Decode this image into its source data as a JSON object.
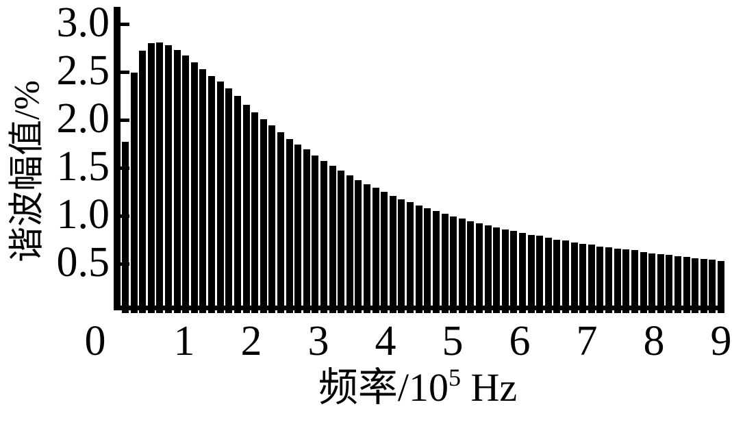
{
  "figure": {
    "background_color": "#ffffff",
    "bar_color": "#000000",
    "axis_color": "#000000"
  },
  "axis_titles": {
    "y_label": "谐波幅值/%",
    "x_label_full": "频率/10^5 Hz",
    "x_label_before_sup": "频率/10",
    "x_label_sup": "5",
    "x_label_after_sup": " Hz"
  },
  "chart_data": {
    "type": "bar",
    "title": "",
    "xlabel": "频率/10⁵ Hz",
    "ylabel": "谐波幅值/%",
    "legend": "none",
    "grid": "off",
    "bar_color": "#000000",
    "x_axis": {
      "min": 0,
      "max": 9,
      "tick_labels": [
        "0",
        "1",
        "2",
        "3",
        "4",
        "5",
        "6",
        "7",
        "8",
        "9"
      ],
      "unit": "10^5 Hz"
    },
    "y_axis": {
      "min": 0,
      "max": 3.16,
      "tick_labels": [
        "3.0",
        "2.5",
        "2.0",
        "1.5",
        "1.0",
        "0.5"
      ]
    },
    "n_bars": 70,
    "x_start": 0.125,
    "x_end": 9.0,
    "x_spacing": "uniform",
    "values": [
      1.77,
      2.49,
      2.72,
      2.8,
      2.81,
      2.78,
      2.73,
      2.67,
      2.6,
      2.53,
      2.46,
      2.4,
      2.33,
      2.25,
      2.16,
      2.08,
      2.01,
      1.94,
      1.87,
      1.8,
      1.74,
      1.69,
      1.63,
      1.57,
      1.52,
      1.47,
      1.42,
      1.37,
      1.33,
      1.29,
      1.25,
      1.21,
      1.17,
      1.14,
      1.11,
      1.08,
      1.05,
      1.02,
      0.99,
      0.97,
      0.94,
      0.92,
      0.9,
      0.88,
      0.86,
      0.84,
      0.82,
      0.8,
      0.79,
      0.77,
      0.75,
      0.74,
      0.72,
      0.71,
      0.7,
      0.68,
      0.67,
      0.66,
      0.65,
      0.64,
      0.62,
      0.61,
      0.6,
      0.59,
      0.58,
      0.57,
      0.56,
      0.55,
      0.54,
      0.53
    ]
  }
}
